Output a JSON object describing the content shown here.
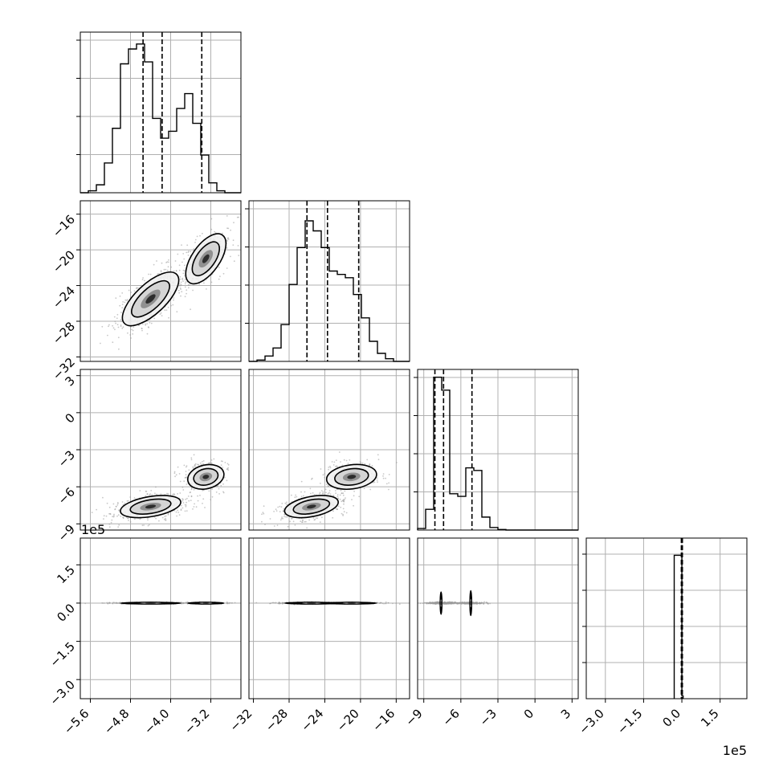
{
  "chart_data": {
    "type": "corner",
    "grid": true,
    "colors": {
      "hist": "#000000",
      "contour": "#000000",
      "points": "#9a9a9a",
      "grid": "#b0b0b0"
    },
    "parameters": [
      {
        "range": [
          -5.8,
          -2.6
        ],
        "ticks": [
          -5.6,
          -4.8,
          -4.0,
          -3.2
        ],
        "tick_labels": [
          "−5.6",
          "−4.8",
          "−4.0",
          "−3.2"
        ],
        "hist": {
          "edges": [
            -5.8,
            -5.64,
            -5.48,
            -5.32,
            -5.16,
            -5.0,
            -4.84,
            -4.68,
            -4.52,
            -4.36,
            -4.2,
            -4.04,
            -3.88,
            -3.72,
            -3.56,
            -3.4,
            -3.24,
            -3.08,
            -2.92,
            -2.76,
            -2.6
          ],
          "counts": [
            0,
            2,
            8,
            30,
            65,
            130,
            145,
            150,
            132,
            75,
            55,
            62,
            85,
            100,
            70,
            38,
            10,
            2,
            0,
            0
          ],
          "ymax": 162
        },
        "quantiles": [
          -4.55,
          -4.17,
          -3.38
        ]
      },
      {
        "range": [
          -32.5,
          -14.5
        ],
        "ticks": [
          -32,
          -28,
          -24,
          -20,
          -16
        ],
        "tick_labels": [
          "−32",
          "−28",
          "−24",
          "−20",
          "−16"
        ],
        "hist": {
          "edges": [
            -32.5,
            -31.6,
            -30.7,
            -29.8,
            -28.9,
            -28.0,
            -27.1,
            -26.2,
            -25.3,
            -24.4,
            -23.5,
            -22.6,
            -21.7,
            -20.8,
            -19.9,
            -19.0,
            -18.1,
            -17.2,
            -16.3,
            -15.4,
            -14.5
          ],
          "counts": [
            0,
            2,
            8,
            20,
            55,
            115,
            170,
            210,
            195,
            170,
            135,
            130,
            125,
            100,
            65,
            30,
            12,
            4,
            0,
            0
          ],
          "ymax": 240
        },
        "quantiles": [
          -26.0,
          -23.7,
          -20.2
        ]
      },
      {
        "range": [
          -9.5,
          3.5
        ],
        "ticks": [
          -9,
          -6,
          -3,
          0,
          3
        ],
        "tick_labels": [
          "−9",
          "−6",
          "−3",
          "0",
          "3"
        ],
        "hist": {
          "edges": [
            -9.5,
            -8.85,
            -8.2,
            -7.55,
            -6.9,
            -6.25,
            -5.6,
            -4.95,
            -4.3,
            -3.65,
            -3.0,
            -2.35,
            -1.7,
            -1.05,
            -0.4,
            0.25,
            0.9,
            1.55,
            2.2,
            2.85,
            3.5
          ],
          "counts": [
            3,
            40,
            295,
            270,
            70,
            65,
            120,
            115,
            25,
            5,
            1,
            0,
            0,
            0,
            0,
            0,
            0,
            0,
            0,
            0
          ],
          "ymax": 310
        },
        "quantiles": [
          -8.1,
          -7.4,
          -5.1
        ]
      },
      {
        "range": [
          -3.75,
          2.55
        ],
        "ticks": [
          -3.0,
          -1.5,
          0.0,
          1.5
        ],
        "tick_labels": [
          "−3.0",
          "−1.5",
          "0.0",
          "1.5"
        ],
        "offset_label": "1e5",
        "hist": {
          "edges": [
            -0.3,
            0.0,
            0.05
          ],
          "counts": [
            1,
            0.02
          ],
          "ymax": 1.12
        },
        "quantiles": [
          -0.02,
          0.0,
          0.02
        ]
      }
    ],
    "pairs": [
      {
        "row": 1,
        "col": 0,
        "clusters": [
          {
            "cx": -4.4,
            "cy": -25.5,
            "sx": 0.28,
            "sy": 1.5,
            "rho": 0.7,
            "w": 0.65
          },
          {
            "cx": -3.3,
            "cy": -21.0,
            "sx": 0.2,
            "sy": 1.4,
            "rho": 0.6,
            "w": 0.35
          }
        ]
      },
      {
        "row": 2,
        "col": 0,
        "clusters": [
          {
            "cx": -4.4,
            "cy": -7.6,
            "sx": 0.3,
            "sy": 0.45,
            "rho": 0.4,
            "w": 0.65
          },
          {
            "cx": -3.3,
            "cy": -5.2,
            "sx": 0.18,
            "sy": 0.5,
            "rho": 0.2,
            "w": 0.35
          }
        ]
      },
      {
        "row": 2,
        "col": 1,
        "clusters": [
          {
            "cx": -25.5,
            "cy": -7.6,
            "sx": 1.5,
            "sy": 0.45,
            "rho": 0.4,
            "w": 0.65
          },
          {
            "cx": -21.0,
            "cy": -5.2,
            "sx": 1.4,
            "sy": 0.5,
            "rho": 0.2,
            "w": 0.35
          }
        ]
      },
      {
        "row": 3,
        "col": 0,
        "clusters": [
          {
            "cx": -4.4,
            "cy": 0.0,
            "sx": 0.3,
            "sy": 0.012,
            "rho": 0.0,
            "w": 0.65
          },
          {
            "cx": -3.3,
            "cy": 0.0,
            "sx": 0.18,
            "sy": 0.012,
            "rho": 0.0,
            "w": 0.35
          }
        ]
      },
      {
        "row": 3,
        "col": 1,
        "clusters": [
          {
            "cx": -25.5,
            "cy": 0.0,
            "sx": 1.5,
            "sy": 0.012,
            "rho": 0.0,
            "w": 0.65
          },
          {
            "cx": -21.0,
            "cy": 0.0,
            "sx": 1.4,
            "sy": 0.012,
            "rho": 0.0,
            "w": 0.35
          }
        ]
      },
      {
        "row": 3,
        "col": 2,
        "clusters": [
          {
            "cx": -7.6,
            "cy": 0.0,
            "sx": 0.45,
            "sy": 0.012,
            "rho": 0.0,
            "w": 0.65
          },
          {
            "cx": -5.2,
            "cy": 0.0,
            "sx": 0.5,
            "sy": 0.012,
            "rho": 0.0,
            "w": 0.35
          }
        ]
      }
    ],
    "offset_labels": [
      {
        "text": "1e5",
        "position": "above-row-3-y-axis"
      },
      {
        "text": "1e5",
        "position": "below-col-3-x-axis"
      }
    ]
  }
}
